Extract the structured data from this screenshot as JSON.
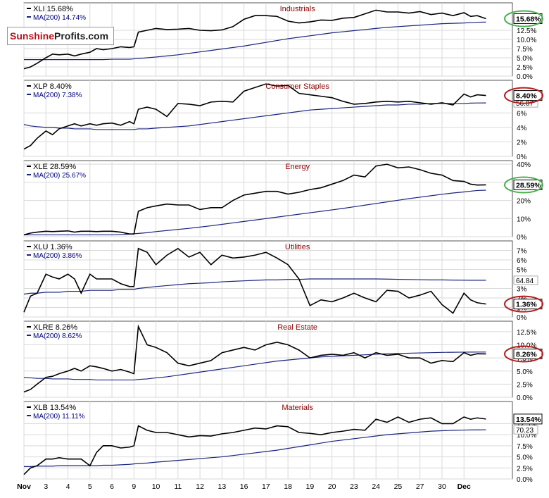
{
  "logo": {
    "part1": "Sunshine",
    "part2": "Profits.com"
  },
  "colors": {
    "price": "#000000",
    "ma": "#1a237e",
    "grid": "#d9d9d9",
    "title": "#8b0000",
    "legend_ma": "#000080",
    "highlight_green": "#4caf50",
    "highlight_red": "#b71c1c"
  },
  "x_axis": {
    "ticks": [
      {
        "label": "Nov",
        "i": 0
      },
      {
        "label": "3",
        "i": 1
      },
      {
        "label": "4",
        "i": 2
      },
      {
        "label": "5",
        "i": 3
      },
      {
        "label": "6",
        "i": 4
      },
      {
        "label": "9",
        "i": 5
      },
      {
        "label": "10",
        "i": 6
      },
      {
        "label": "11",
        "i": 7
      },
      {
        "label": "12",
        "i": 8
      },
      {
        "label": "13",
        "i": 9
      },
      {
        "label": "16",
        "i": 10
      },
      {
        "label": "17",
        "i": 11
      },
      {
        "label": "18",
        "i": 12
      },
      {
        "label": "19",
        "i": 13
      },
      {
        "label": "20",
        "i": 14
      },
      {
        "label": "23",
        "i": 15
      },
      {
        "label": "24",
        "i": 16
      },
      {
        "label": "25",
        "i": 17
      },
      {
        "label": "27",
        "i": 18
      },
      {
        "label": "30",
        "i": 19
      },
      {
        "label": "Dec",
        "i": 20
      }
    ],
    "n": 22.2
  },
  "chart_data": [
    {
      "type": "line",
      "title": "Industrials",
      "legend_price": "XLI 15.68%",
      "legend_ma": "MA(200) 14.74%",
      "ylim": [
        0,
        20
      ],
      "yticks": [
        "0.0%",
        "2.5%",
        "5.0%",
        "7.5%",
        "10.0%",
        "12.5%"
      ],
      "ytick_vals": [
        0,
        2.5,
        5,
        7.5,
        10,
        12.5
      ],
      "last_label": "15.68%",
      "highlight": "green",
      "ma_label": "",
      "x": [
        0,
        0.3,
        0.6,
        1,
        1.3,
        1.6,
        2,
        2.3,
        2.6,
        3,
        3.3,
        3.6,
        4,
        4.4,
        4.8,
        5,
        5.2,
        5.6,
        6,
        6.5,
        7,
        7.5,
        8,
        8.5,
        9,
        9.5,
        10,
        10.5,
        11,
        11.5,
        12,
        12.5,
        13,
        13.5,
        14,
        14.5,
        15,
        15.5,
        16,
        16.5,
        17,
        17.5,
        18,
        18.5,
        19,
        19.5,
        20,
        20.3,
        20.6,
        21
      ],
      "price": [
        2,
        2.5,
        3.5,
        5,
        6,
        5.8,
        6,
        5.5,
        6,
        6.5,
        7.5,
        7.2,
        7.5,
        8,
        7.8,
        8,
        12,
        12.5,
        13,
        12.7,
        12.8,
        13,
        12.5,
        12.4,
        12.6,
        13.5,
        15.5,
        16.5,
        16.5,
        16.3,
        15,
        14.5,
        14.8,
        15.3,
        15.2,
        15.8,
        16,
        17,
        18,
        17.5,
        17.5,
        17.2,
        17.6,
        16.8,
        17.2,
        16.5,
        17.3,
        16.3,
        16.5,
        15.68
      ],
      "ma": [
        4.5,
        4.5,
        4.5,
        4.5,
        4.5,
        4.5,
        4.5,
        4.5,
        4.5,
        4.5,
        4.5,
        4.5,
        4.6,
        4.6,
        4.6,
        4.7,
        4.8,
        5,
        5.2,
        5.5,
        5.8,
        6.2,
        6.6,
        7,
        7.4,
        7.8,
        8.2,
        8.7,
        9.2,
        9.7,
        10.2,
        10.6,
        11,
        11.4,
        11.8,
        12.1,
        12.4,
        12.7,
        13,
        13.3,
        13.5,
        13.7,
        13.9,
        14.1,
        14.3,
        14.4,
        14.5,
        14.6,
        14.7,
        14.74
      ]
    },
    {
      "type": "line",
      "title": "Consumer Staples",
      "legend_price": "XLP 8.40%",
      "legend_ma": "MA(200) 7.38%",
      "ylim": [
        0,
        10.5
      ],
      "yticks": [
        "0%",
        "2%",
        "4%",
        "6%"
      ],
      "ytick_vals": [
        0,
        2,
        4,
        6
      ],
      "last_label": "8.40%",
      "highlight": "red",
      "ma_label": "56.87",
      "x": [
        0,
        0.3,
        0.6,
        1,
        1.3,
        1.6,
        2,
        2.3,
        2.6,
        3,
        3.3,
        3.6,
        4,
        4.4,
        4.8,
        5,
        5.2,
        5.6,
        6,
        6.5,
        7,
        7.5,
        8,
        8.5,
        9,
        9.5,
        10,
        10.5,
        11,
        11.5,
        12,
        12.5,
        13,
        13.5,
        14,
        14.5,
        15,
        15.5,
        16,
        16.5,
        17,
        17.5,
        18,
        18.5,
        19,
        19.5,
        20,
        20.3,
        20.6,
        21
      ],
      "price": [
        1,
        1.5,
        2.5,
        3.5,
        3,
        3.8,
        4.2,
        4.5,
        4.2,
        4.5,
        4.3,
        4.5,
        4.6,
        4.3,
        4.8,
        4.5,
        6.5,
        6.8,
        6.5,
        5.5,
        7.3,
        7.2,
        7,
        7.5,
        7.6,
        7.5,
        9,
        9.5,
        10,
        9.7,
        9.8,
        8.7,
        8.5,
        8.3,
        8.1,
        7.6,
        7.2,
        7.3,
        7.5,
        7.6,
        7.5,
        7.6,
        7.4,
        7.2,
        7.4,
        7.1,
        8.6,
        8.2,
        8.5,
        8.4
      ],
      "ma": [
        4.4,
        4.2,
        4.1,
        4,
        4,
        3.9,
        3.9,
        3.8,
        3.8,
        3.8,
        3.7,
        3.7,
        3.7,
        3.7,
        3.7,
        3.7,
        3.8,
        3.8,
        3.9,
        4,
        4.1,
        4.2,
        4.4,
        4.6,
        4.8,
        5,
        5.2,
        5.4,
        5.6,
        5.8,
        6,
        6.2,
        6.4,
        6.5,
        6.6,
        6.7,
        6.8,
        6.9,
        7,
        7.1,
        7.1,
        7.2,
        7.2,
        7.3,
        7.3,
        7.3,
        7.3,
        7.35,
        7.37,
        7.38
      ]
    },
    {
      "type": "line",
      "title": "Energy",
      "legend_price": "XLE 28.59%",
      "legend_ma": "MA(200) 25.67%",
      "ylim": [
        0,
        42
      ],
      "yticks": [
        "0%",
        "10%",
        "20%",
        "30%",
        "40%"
      ],
      "ytick_vals": [
        0,
        10,
        20,
        30,
        40
      ],
      "last_label": "28.59%",
      "highlight": "green",
      "ma_label": "",
      "x": [
        0,
        0.3,
        0.6,
        1,
        1.3,
        1.6,
        2,
        2.3,
        2.6,
        3,
        3.3,
        3.6,
        4,
        4.4,
        4.8,
        5,
        5.2,
        5.6,
        6,
        6.5,
        7,
        7.5,
        8,
        8.5,
        9,
        9.5,
        10,
        10.5,
        11,
        11.5,
        12,
        12.5,
        13,
        13.5,
        14,
        14.5,
        15,
        15.5,
        16,
        16.5,
        17,
        17.5,
        18,
        18.5,
        19,
        19.5,
        20,
        20.3,
        20.6,
        21
      ],
      "price": [
        1,
        2,
        2.5,
        3,
        2.8,
        3,
        3.2,
        2.5,
        3,
        3,
        2.8,
        3,
        3,
        2.5,
        1.5,
        1.5,
        14,
        16,
        17,
        18,
        17.5,
        17.5,
        15,
        16,
        16,
        20,
        23,
        24,
        25,
        25,
        23.5,
        24.5,
        26,
        27,
        29,
        31,
        34,
        33,
        39,
        40,
        38,
        38.5,
        37,
        35,
        34,
        31,
        30.5,
        29,
        28.5,
        28.59
      ],
      "ma": [
        1,
        1,
        1,
        1,
        1,
        1,
        1,
        1,
        1,
        1,
        1,
        1,
        1,
        1.2,
        1.4,
        1.6,
        1.8,
        2.2,
        2.8,
        3.4,
        4,
        4.6,
        5.3,
        6,
        6.8,
        7.6,
        8.4,
        9.2,
        10,
        10.8,
        11.6,
        12.4,
        13.2,
        14,
        14.8,
        15.6,
        16.5,
        17.4,
        18.3,
        19.2,
        20.1,
        21,
        21.8,
        22.6,
        23.4,
        24.1,
        24.7,
        25.1,
        25.5,
        25.67
      ]
    },
    {
      "type": "line",
      "title": "Utilities",
      "legend_price": "XLU 1.36%",
      "legend_ma": "MA(200) 3.86%",
      "ylim": [
        0,
        8
      ],
      "yticks": [
        "0%",
        "1%",
        "2%",
        "3%",
        "5%",
        "6%",
        "7%"
      ],
      "ytick_vals": [
        0,
        1,
        2,
        3,
        5,
        6,
        7
      ],
      "last_label": "1.36%",
      "highlight": "red",
      "ma_label": "64.84",
      "x": [
        0,
        0.3,
        0.6,
        1,
        1.3,
        1.6,
        2,
        2.3,
        2.6,
        3,
        3.3,
        3.6,
        4,
        4.4,
        4.8,
        5,
        5.2,
        5.6,
        6,
        6.5,
        7,
        7.5,
        8,
        8.5,
        9,
        9.5,
        10,
        10.5,
        11,
        11.5,
        12,
        12.5,
        13,
        13.5,
        14,
        14.5,
        15,
        15.5,
        16,
        16.5,
        17,
        17.5,
        18,
        18.5,
        19,
        19.5,
        20,
        20.3,
        20.6,
        21
      ],
      "price": [
        0.5,
        2.2,
        2.5,
        4.5,
        4.2,
        4,
        4.5,
        4,
        2.5,
        4.5,
        4,
        4,
        4,
        3.5,
        3.2,
        3.2,
        7.2,
        6.8,
        5.5,
        6.5,
        7.2,
        6.3,
        6.8,
        5.5,
        6.5,
        6.2,
        6.3,
        6.5,
        6.8,
        6.2,
        5.5,
        4,
        1.2,
        1.8,
        1.6,
        2,
        2.5,
        2,
        1.6,
        2.8,
        2.7,
        2,
        2.3,
        2.7,
        1.3,
        0.4,
        2.5,
        1.8,
        1.5,
        1.36
      ],
      "ma": [
        2.4,
        2.5,
        2.5,
        2.6,
        2.6,
        2.6,
        2.7,
        2.7,
        2.7,
        2.8,
        2.8,
        2.8,
        2.8,
        2.9,
        2.9,
        2.9,
        3,
        3.1,
        3.2,
        3.3,
        3.4,
        3.5,
        3.55,
        3.6,
        3.7,
        3.75,
        3.8,
        3.85,
        3.9,
        3.9,
        3.95,
        3.95,
        4,
        4,
        4,
        4,
        4,
        4,
        4,
        3.98,
        3.96,
        3.94,
        3.92,
        3.9,
        3.9,
        3.88,
        3.87,
        3.86,
        3.86,
        3.86
      ]
    },
    {
      "type": "line",
      "title": "Real Estate",
      "legend_price": "XLRE 8.26%",
      "legend_ma": "MA(200) 8.62%",
      "ylim": [
        0,
        14.5
      ],
      "yticks": [
        "0.0%",
        "2.5%",
        "5.0%",
        "7.5%",
        "10.0%",
        "12.5%"
      ],
      "ytick_vals": [
        0,
        2.5,
        5,
        7.5,
        10,
        12.5
      ],
      "last_label": "8.26%",
      "highlight": "red",
      "ma_label": "",
      "x": [
        0,
        0.3,
        0.6,
        1,
        1.3,
        1.6,
        2,
        2.3,
        2.6,
        3,
        3.3,
        3.6,
        4,
        4.4,
        4.8,
        5,
        5.2,
        5.6,
        6,
        6.5,
        7,
        7.5,
        8,
        8.5,
        9,
        9.5,
        10,
        10.5,
        11,
        11.5,
        12,
        12.5,
        13,
        13.5,
        14,
        14.5,
        15,
        15.5,
        16,
        16.5,
        17,
        17.5,
        18,
        18.5,
        19,
        19.5,
        20,
        20.3,
        20.6,
        21
      ],
      "price": [
        1,
        1.5,
        2.5,
        3.8,
        4,
        4.5,
        5,
        5.5,
        5,
        6,
        5.8,
        5.5,
        5,
        5.3,
        4.8,
        4.5,
        13.5,
        10,
        9.5,
        8.5,
        6.5,
        6,
        6.5,
        7,
        8.5,
        9,
        9.5,
        9,
        10,
        10.5,
        10,
        9,
        7.5,
        8,
        8.2,
        8,
        8.5,
        7.5,
        8.5,
        8,
        8.2,
        7.5,
        7.5,
        6.5,
        7,
        6.8,
        8.5,
        8,
        8.3,
        8.26
      ],
      "ma": [
        3.8,
        3.7,
        3.6,
        3.6,
        3.5,
        3.5,
        3.5,
        3.4,
        3.4,
        3.4,
        3.3,
        3.3,
        3.3,
        3.3,
        3.3,
        3.3,
        3.4,
        3.5,
        3.7,
        3.9,
        4.2,
        4.5,
        4.8,
        5.1,
        5.4,
        5.7,
        6,
        6.3,
        6.6,
        6.9,
        7.1,
        7.3,
        7.5,
        7.7,
        7.8,
        7.9,
        8,
        8.1,
        8.2,
        8.3,
        8.35,
        8.4,
        8.45,
        8.5,
        8.55,
        8.58,
        8.6,
        8.61,
        8.62,
        8.62
      ]
    },
    {
      "type": "line",
      "title": "Materials",
      "legend_price": "XLB 13.54%",
      "legend_ma": "MA(200) 11.11%",
      "ylim": [
        0,
        17.5
      ],
      "yticks": [
        "0.0%",
        "2.5%",
        "5.0%",
        "7.5%",
        "10.0%",
        "12.5%"
      ],
      "ytick_vals": [
        0,
        2.5,
        5,
        7.5,
        10,
        12.5
      ],
      "last_label": "13.54%",
      "highlight": "none",
      "ma_label": "70.23",
      "x": [
        0,
        0.3,
        0.6,
        1,
        1.3,
        1.6,
        2,
        2.3,
        2.6,
        3,
        3.3,
        3.6,
        4,
        4.4,
        4.8,
        5,
        5.2,
        5.6,
        6,
        6.5,
        7,
        7.5,
        8,
        8.5,
        9,
        9.5,
        10,
        10.5,
        11,
        11.5,
        12,
        12.5,
        13,
        13.5,
        14,
        14.5,
        15,
        15.5,
        16,
        16.5,
        17,
        17.5,
        18,
        18.5,
        19,
        19.5,
        20,
        20.3,
        20.6,
        21
      ],
      "price": [
        1,
        2.5,
        3,
        4.5,
        4.5,
        4.8,
        4.5,
        4.5,
        4.5,
        3,
        6,
        7.5,
        7.5,
        7,
        7.2,
        7.5,
        12,
        11,
        10.5,
        10.5,
        10,
        9.5,
        9.8,
        9.7,
        10.2,
        10.5,
        11,
        11.5,
        11.3,
        12,
        11.8,
        10.5,
        10.3,
        10,
        10.5,
        10.8,
        11.2,
        11,
        13.5,
        12.8,
        14,
        12.8,
        13.5,
        13.8,
        12.5,
        12.5,
        14,
        13.5,
        13.8,
        13.54
      ],
      "ma": [
        2.8,
        2.8,
        2.9,
        2.9,
        2.9,
        3,
        3,
        3,
        3,
        3,
        3,
        3.1,
        3.1,
        3.2,
        3.3,
        3.4,
        3.5,
        3.6,
        3.8,
        4,
        4.2,
        4.4,
        4.6,
        4.8,
        5,
        5.3,
        5.6,
        5.9,
        6.2,
        6.5,
        6.9,
        7.3,
        7.7,
        8.1,
        8.5,
        8.8,
        9.1,
        9.4,
        9.7,
        10,
        10.2,
        10.4,
        10.6,
        10.8,
        10.9,
        11,
        11.05,
        11.08,
        11.1,
        11.11
      ]
    }
  ]
}
